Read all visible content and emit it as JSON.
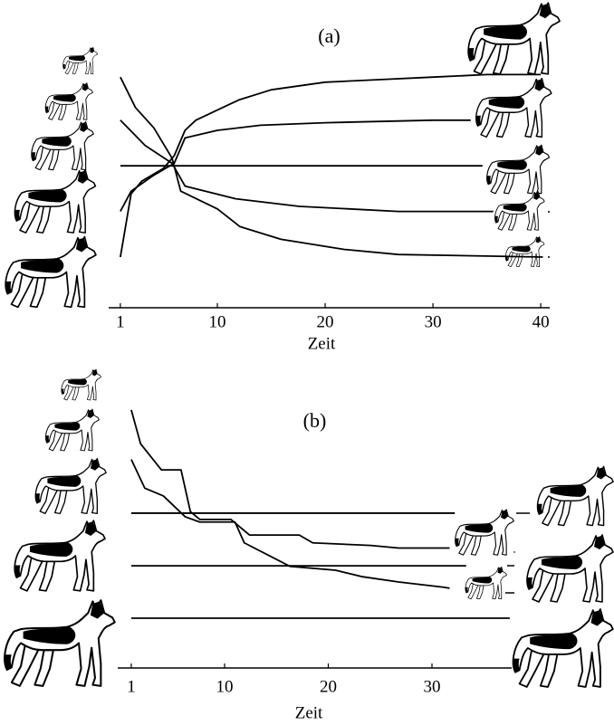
{
  "chart_data": [
    {
      "type": "line",
      "title": "(a)",
      "x_label": "Zeit",
      "xlim": [
        0,
        41
      ],
      "xticks": [
        1,
        10,
        20,
        30,
        40
      ],
      "ylim": [
        0,
        100
      ],
      "series": [
        {
          "color": "#000000",
          "x": [
            1,
            2,
            3,
            5,
            6,
            7,
            8,
            10,
            12,
            15,
            20,
            25,
            30,
            35,
            40
          ],
          "values": [
            20,
            45,
            50,
            55,
            60,
            70,
            74,
            78,
            82,
            86,
            89,
            90,
            91,
            92,
            92
          ]
        },
        {
          "color": "#000000",
          "x": [
            1,
            2,
            4,
            6,
            7,
            10,
            14,
            20,
            25,
            30,
            33.5
          ],
          "values": [
            38,
            46,
            52,
            57,
            67,
            70,
            72,
            73,
            73.5,
            74,
            74
          ]
        },
        {
          "color": "#000000",
          "x": [
            1,
            34.6
          ],
          "values": [
            56,
            56
          ]
        },
        {
          "color": "#000000",
          "x": [
            1,
            3.3,
            5.8,
            7,
            11.7,
            17.6,
            26.8,
            35.6
          ],
          "values": [
            74,
            64,
            57,
            48,
            43,
            40,
            38,
            38
          ]
        },
        {
          "color": "#000000",
          "x": [
            1,
            2.4,
            4.1,
            5.8,
            6.6,
            10,
            12.1,
            15.9,
            21.8,
            26.8,
            40.2
          ],
          "values": [
            91,
            79,
            71,
            59,
            46,
            39,
            32,
            27,
            23,
            21,
            20
          ]
        }
      ]
    },
    {
      "type": "line",
      "title": "(b)",
      "x_label": "Zeit",
      "xlim": [
        0,
        38
      ],
      "xticks": [
        1,
        10,
        20,
        30
      ],
      "ylim": [
        0,
        100
      ],
      "series": [
        {
          "color": "#000000",
          "x": [
            1,
            32.2
          ],
          "values": [
            59.4,
            59.4
          ]
        },
        {
          "color": "#000000",
          "x": [
            1,
            33.3
          ],
          "values": [
            39.2,
            39.2
          ]
        },
        {
          "color": "#000000",
          "x": [
            1,
            37.5
          ],
          "values": [
            19.1,
            19.1
          ]
        },
        {
          "color": "#000000",
          "x": [
            1,
            1.9,
            3.9,
            5.8,
            6.7,
            7.6,
            10.6,
            12.4,
            17.2,
            18.5,
            24.1,
            26.8,
            31.7
          ],
          "values": [
            99,
            86,
            76,
            76,
            60,
            57,
            57,
            51,
            51,
            48,
            47,
            46,
            46
          ]
        },
        {
          "color": "#000000",
          "x": [
            1,
            2.3,
            4.1,
            6.2,
            7.6,
            11,
            11.9,
            16.3,
            20.7,
            23.3,
            26.8,
            31.1,
            31.7
          ],
          "values": [
            80,
            69,
            66,
            58,
            56,
            56,
            48,
            39,
            37.5,
            35,
            33,
            31,
            30.6
          ]
        }
      ]
    }
  ]
}
